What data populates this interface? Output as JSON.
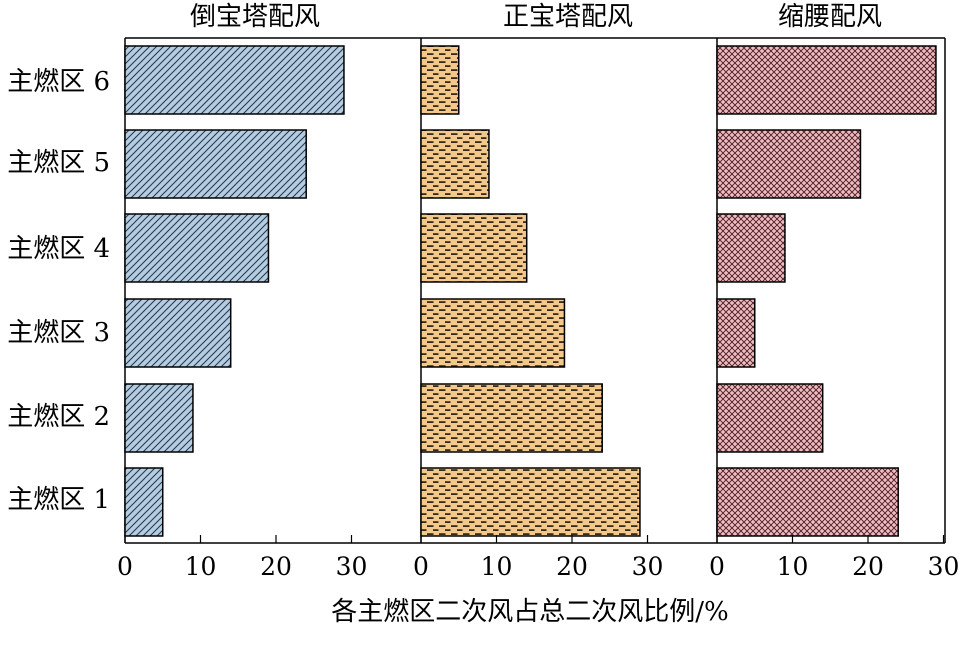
{
  "chart_data": {
    "type": "bar",
    "orientation": "horizontal",
    "categories": [
      "主燃区 1",
      "主燃区 2",
      "主燃区 3",
      "主燃区 4",
      "主燃区 5",
      "主燃区 6"
    ],
    "xlabel": "各主燃区二次风占总二次风比例/%",
    "xlim": [
      0,
      30
    ],
    "xticks": [
      0,
      10,
      20,
      30
    ],
    "grid": false,
    "panels": [
      {
        "title": "倒宝塔配风",
        "values": [
          5,
          9,
          14,
          19,
          24,
          29
        ],
        "fill_color": "#b4cde3",
        "pattern": "diagonal-hatch"
      },
      {
        "title": "正宝塔配风",
        "values": [
          29,
          24,
          19,
          14,
          9,
          5
        ],
        "fill_color": "#f2c98a",
        "pattern": "brick"
      },
      {
        "title": "缩腰配风",
        "values": [
          24,
          14,
          5,
          9,
          19,
          29
        ],
        "fill_color": "#ecbcc0",
        "pattern": "crosshatch"
      }
    ]
  }
}
